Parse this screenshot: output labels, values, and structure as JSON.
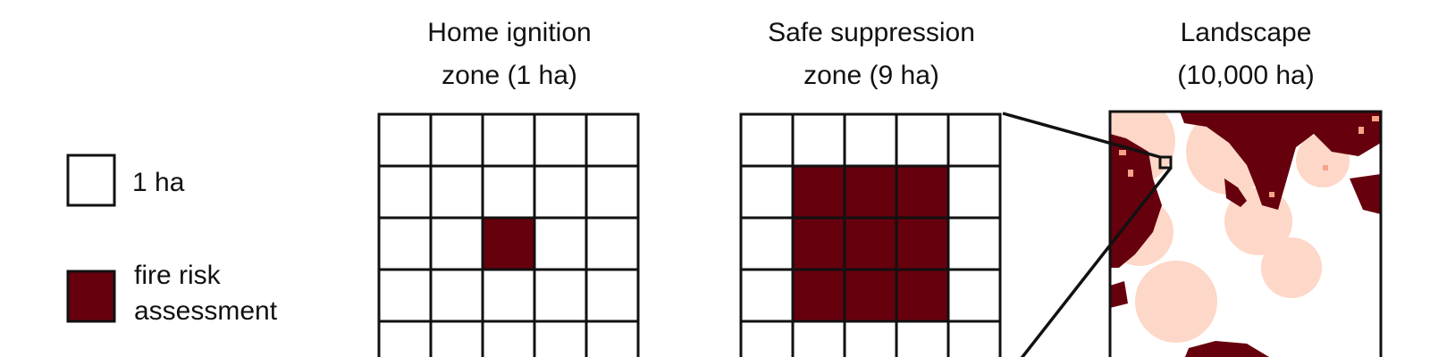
{
  "panels": [
    {
      "title_line1": "Home ignition",
      "title_line2": "zone (1 ha)",
      "highlight": {
        "row": 2,
        "col": 2,
        "size": 1
      }
    },
    {
      "title_line1": "Safe suppression",
      "title_line2": "zone (9 ha)",
      "highlight": {
        "row": 1,
        "col": 1,
        "size": 3
      }
    },
    {
      "title_line1": "Landscape",
      "title_line2": "(10,000 ha)"
    }
  ],
  "legend": [
    {
      "label": "1 ha",
      "swatch": "empty"
    },
    {
      "label_line1": "fire risk",
      "label_line2": "assessment",
      "swatch": "filled"
    }
  ],
  "colors": {
    "risk": "#67000d",
    "light": "#fdd7c7",
    "mid": "#f6a487",
    "grid": "#111111",
    "background": "#ffffff"
  }
}
